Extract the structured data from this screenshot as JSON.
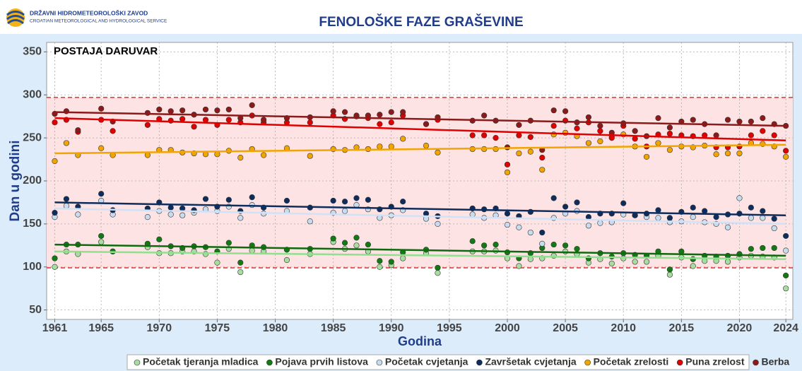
{
  "header": {
    "org": "DRŽAVNI HIDROMETEOROLOŠKI ZAVOD",
    "org_en": "CROATIAN METEOROLOGICAL AND HYDROLOGICAL SERVICE"
  },
  "chart_data": {
    "type": "scatter",
    "title": "FENOLOŠKE FAZE GRAŠEVINE",
    "annotation": "POSTAJA DARUVAR",
    "x_label": "Godina",
    "y_label": "Dan u godini",
    "xlim": [
      1960.3,
      2024.6
    ],
    "ylim": [
      39,
      361
    ],
    "xticks": [
      1961,
      1965,
      1970,
      1975,
      1980,
      1985,
      1990,
      1995,
      2000,
      2005,
      2010,
      2015,
      2020,
      2024
    ],
    "yticks": [
      50,
      100,
      150,
      200,
      250,
      300,
      350
    ],
    "grid": true,
    "reference_lines": [
      99,
      297
    ],
    "x": [
      1961,
      1962,
      1963,
      1965,
      1966,
      1969,
      1970,
      1971,
      1972,
      1973,
      1974,
      1975,
      1976,
      1977,
      1978,
      1979,
      1981,
      1983,
      1985,
      1986,
      1987,
      1988,
      1989,
      1990,
      1991,
      1993,
      1994,
      1997,
      1998,
      1999,
      2000,
      2001,
      2002,
      2003,
      2004,
      2005,
      2006,
      2007,
      2008,
      2009,
      2010,
      2011,
      2012,
      2013,
      2014,
      2015,
      2016,
      2017,
      2018,
      2019,
      2020,
      2021,
      2022,
      2023,
      2024
    ],
    "series": [
      {
        "name": "Početak tjeranja mladica",
        "color": "#a8dca0",
        "trend_color": "#90e090",
        "trend": [
          118,
          109
        ],
        "values": [
          100,
          118,
          115,
          129,
          118,
          123,
          116,
          116,
          118,
          118,
          115,
          105,
          121,
          94,
          119,
          118,
          108,
          115,
          129,
          121,
          125,
          118,
          100,
          102,
          110,
          116,
          93,
          118,
          118,
          119,
          110,
          101,
          109,
          110,
          113,
          118,
          115,
          105,
          109,
          104,
          110,
          106,
          106,
          113,
          91,
          111,
          101,
          107,
          107,
          106,
          111,
          113,
          112,
          111,
          75
        ]
      },
      {
        "name": "Pojava prvih listova",
        "color": "#127a12",
        "trend_color": "#0e6a0e",
        "trend": [
          126,
          113
        ],
        "values": [
          110,
          126,
          126,
          136,
          118,
          127,
          132,
          124,
          122,
          124,
          123,
          118,
          128,
          105,
          125,
          123,
          120,
          121,
          133,
          128,
          134,
          126,
          107,
          106,
          117,
          120,
          99,
          130,
          125,
          126,
          117,
          110,
          116,
          122,
          126,
          125,
          121,
          110,
          116,
          112,
          116,
          114,
          113,
          118,
          97,
          118,
          109,
          113,
          112,
          113,
          115,
          121,
          122,
          122,
          90
        ]
      },
      {
        "name": "Početak cvjetanja",
        "color": "#c8dcf0",
        "trend_color": "#d2e2f6",
        "trend": [
          168,
          150
        ],
        "values": [
          158,
          171,
          161,
          177,
          161,
          158,
          165,
          161,
          160,
          163,
          167,
          165,
          170,
          157,
          172,
          162,
          165,
          153,
          163,
          165,
          172,
          167,
          157,
          160,
          166,
          156,
          150,
          161,
          157,
          160,
          149,
          146,
          140,
          127,
          157,
          162,
          165,
          148,
          151,
          152,
          161,
          160,
          158,
          157,
          152,
          153,
          158,
          152,
          150,
          146,
          180,
          157,
          157,
          145,
          119
        ]
      },
      {
        "name": "Završetak cvjetanja",
        "color": "#0d2d5e",
        "trend_color": "#0d2d5e",
        "trend": [
          175,
          160
        ],
        "values": [
          163,
          179,
          170,
          185,
          166,
          168,
          175,
          169,
          168,
          166,
          179,
          170,
          178,
          165,
          181,
          169,
          177,
          169,
          177,
          176,
          180,
          178,
          167,
          170,
          176,
          162,
          159,
          168,
          167,
          168,
          162,
          159,
          164,
          140,
          180,
          170,
          175,
          158,
          162,
          162,
          174,
          160,
          162,
          166,
          157,
          164,
          169,
          165,
          158,
          161,
          162,
          169,
          165,
          156,
          136
        ]
      },
      {
        "name": "Početak zrelosti",
        "color": "#f2a400",
        "trend_color": "#f2a400",
        "trend": [
          232,
          242
        ],
        "values": [
          223,
          244,
          230,
          238,
          230,
          230,
          236,
          236,
          233,
          232,
          231,
          231,
          235,
          227,
          237,
          230,
          238,
          229,
          237,
          236,
          239,
          237,
          240,
          240,
          249,
          241,
          233,
          237,
          237,
          237,
          210,
          232,
          234,
          213,
          254,
          256,
          252,
          244,
          246,
          252,
          254,
          240,
          228,
          244,
          236,
          240,
          239,
          241,
          231,
          232,
          232,
          244,
          243,
          240,
          228
        ]
      },
      {
        "name": "Puna zrelost",
        "color": "#e00000",
        "trend_color": "#e00000",
        "trend": [
          273,
          247
        ],
        "values": [
          268,
          271,
          257,
          271,
          258,
          265,
          272,
          270,
          272,
          263,
          271,
          265,
          271,
          268,
          276,
          268,
          268,
          268,
          276,
          272,
          275,
          273,
          266,
          268,
          276,
          266,
          271,
          253,
          253,
          250,
          219,
          253,
          251,
          227,
          264,
          270,
          261,
          268,
          258,
          250,
          264,
          249,
          240,
          254,
          255,
          253,
          252,
          253,
          239,
          239,
          240,
          253,
          258,
          253,
          235
        ]
      },
      {
        "name": "Berba",
        "color": "#8b1a1a",
        "trend_color": "#8b1a1a",
        "trend": [
          280,
          264
        ],
        "values": [
          278,
          281,
          259,
          284,
          269,
          279,
          283,
          281,
          282,
          277,
          283,
          282,
          283,
          273,
          288,
          271,
          273,
          274,
          281,
          280,
          276,
          276,
          277,
          280,
          280,
          266,
          274,
          270,
          276,
          270,
          239,
          265,
          270,
          236,
          282,
          281,
          268,
          274,
          264,
          256,
          267,
          258,
          252,
          273,
          262,
          269,
          271,
          266,
          253,
          271,
          269,
          269,
          273,
          266,
          264
        ]
      }
    ]
  }
}
